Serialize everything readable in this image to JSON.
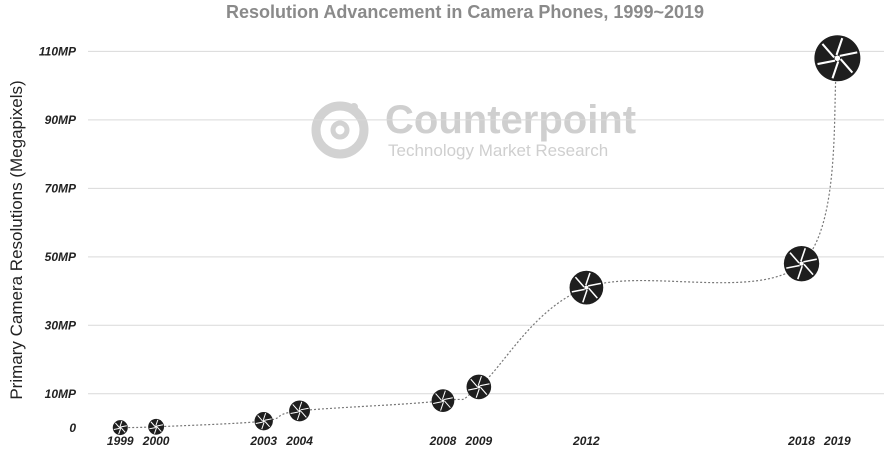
{
  "chart_data": {
    "type": "scatter",
    "title": "Resolution Advancement in Camera Phones, 1999~2019",
    "ylabel": "Primary Camera Resolutions (Megapixels)",
    "xlabel": "",
    "ylim": [
      0,
      118
    ],
    "xlim": [
      1998.1,
      2020.3
    ],
    "y_ticks": [
      {
        "value": 0,
        "label": "0"
      },
      {
        "value": 10,
        "label": "10MP"
      },
      {
        "value": 30,
        "label": "30MP"
      },
      {
        "value": 50,
        "label": "50MP"
      },
      {
        "value": 70,
        "label": "70MP"
      },
      {
        "value": 90,
        "label": "90MP"
      },
      {
        "value": 110,
        "label": "110MP"
      }
    ],
    "grid": true,
    "series": [
      {
        "marker": "camera-aperture-icon",
        "points": [
          {
            "x": 1999,
            "y": 0.11,
            "label": "1999"
          },
          {
            "x": 2000,
            "y": 0.35,
            "label": "2000"
          },
          {
            "x": 2003,
            "y": 2,
            "label": "2003"
          },
          {
            "x": 2004,
            "y": 5,
            "label": "2004"
          },
          {
            "x": 2008,
            "y": 8,
            "label": "2008"
          },
          {
            "x": 2009,
            "y": 12,
            "label": "2009"
          },
          {
            "x": 2012,
            "y": 41,
            "label": "2012"
          },
          {
            "x": 2018,
            "y": 48,
            "label": "2018"
          },
          {
            "x": 2019,
            "y": 108,
            "label": "2019"
          }
        ]
      }
    ],
    "colors": {
      "marker": "#1e1e1e",
      "grid": "#d9d9d9",
      "trend": "#777777",
      "title": "#8a8a8a"
    }
  },
  "watermark": {
    "name": "Counterpoint",
    "subtitle": "Technology Market Research",
    "icon": "counterpoint-logo-icon",
    "color": "#cfcfcf"
  }
}
